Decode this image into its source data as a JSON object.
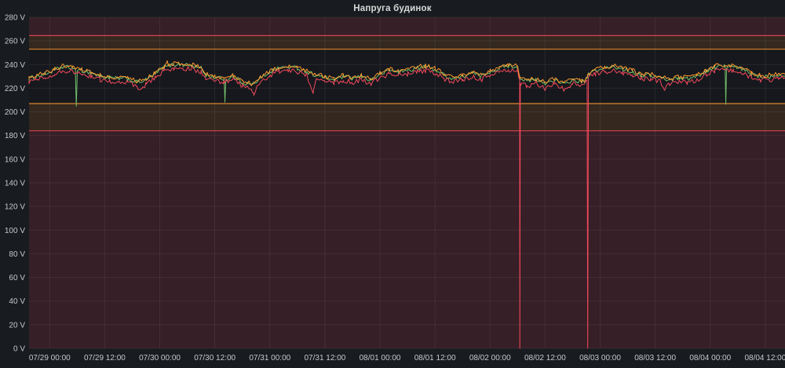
{
  "panel": {
    "title": "Напруга будинок"
  },
  "colors": {
    "panel_bg": "#181b1f",
    "plot_bg": "#16181d",
    "grid": "rgba(255,255,255,0.07)",
    "axis_text": "#c7c8cd",
    "title_text": "#d8d9da",
    "green": "#73bf69",
    "orange": "#ff9830",
    "red": "#f2495c"
  },
  "chart_data": {
    "type": "line",
    "title": "Напруга будинок",
    "unit": "V",
    "legend": "none",
    "grid": true,
    "y_range": [
      0,
      280
    ],
    "y_tick_step": 20,
    "y_ticks": [
      "0 V",
      "20 V",
      "40 V",
      "60 V",
      "80 V",
      "100 V",
      "120 V",
      "140 V",
      "160 V",
      "180 V",
      "200 V",
      "220 V",
      "240 V",
      "260 V",
      "280 V"
    ],
    "x_range_hours": [
      -4.5,
      160.3
    ],
    "x_ticks": [
      {
        "h": 0,
        "label": "07/29 00:00"
      },
      {
        "h": 12,
        "label": "07/29 12:00"
      },
      {
        "h": 24,
        "label": "07/30 00:00"
      },
      {
        "h": 36,
        "label": "07/30 12:00"
      },
      {
        "h": 48,
        "label": "07/31 00:00"
      },
      {
        "h": 60,
        "label": "07/31 12:00"
      },
      {
        "h": 72,
        "label": "08/01 00:00"
      },
      {
        "h": 84,
        "label": "08/01 12:00"
      },
      {
        "h": 96,
        "label": "08/02 00:00"
      },
      {
        "h": 108,
        "label": "08/02 12:00"
      },
      {
        "h": 120,
        "label": "08/03 00:00"
      },
      {
        "h": 132,
        "label": "08/03 12:00"
      },
      {
        "h": 144,
        "label": "08/04 00:00"
      },
      {
        "h": 156,
        "label": "08/04 12:00"
      }
    ],
    "thresholds": {
      "bands": [
        {
          "from": 264.5,
          "to": 280,
          "fill": "rgba(242,73,92,0.15)"
        },
        {
          "from": 253,
          "to": 264.5,
          "fill": "rgba(255,152,48,0.13)"
        },
        {
          "from": 184,
          "to": 207,
          "fill": "rgba(255,152,48,0.13)"
        },
        {
          "from": 0,
          "to": 184,
          "fill": "rgba(242,73,92,0.15)"
        }
      ],
      "lines": [
        {
          "value": 264.5,
          "color": "rgba(242,73,92,0.85)"
        },
        {
          "value": 253,
          "color": "rgba(255,152,48,0.85)"
        },
        {
          "value": 207,
          "color": "rgba(255,152,48,0.85)"
        },
        {
          "value": 184,
          "color": "rgba(242,73,92,0.85)"
        }
      ]
    },
    "annotations": {
      "red_phase_drops_to_zero": [
        "08/02 ~06:30",
        "08/02 ~21:20"
      ],
      "green_phase_dips": [
        "07/29 ~05:50 to ~205 V",
        "07/30 ~14:10 to ~210 V",
        "08/04 ~03:25 to ~206 V"
      ],
      "sag_window_low_voltage": "08/02 06:30 - 08/02 21:20 (~219-228 V)"
    },
    "series": [
      {
        "name": "green",
        "color": "#73bf69",
        "noise": 1.8,
        "points": [
          [
            -4.5,
            228
          ],
          [
            -3,
            230
          ],
          [
            -1,
            232
          ],
          [
            1,
            235
          ],
          [
            3,
            238
          ],
          [
            5,
            237
          ],
          [
            5.6,
            235
          ],
          [
            5.8,
            205
          ],
          [
            6,
            234
          ],
          [
            7,
            235
          ],
          [
            9,
            233
          ],
          [
            11,
            230
          ],
          [
            13,
            229
          ],
          [
            15,
            228
          ],
          [
            17,
            228
          ],
          [
            19,
            225
          ],
          [
            21,
            227
          ],
          [
            23,
            232
          ],
          [
            25,
            238
          ],
          [
            27,
            240
          ],
          [
            29,
            240
          ],
          [
            31,
            239
          ],
          [
            33,
            237
          ],
          [
            34,
            231
          ],
          [
            36,
            229
          ],
          [
            38,
            228
          ],
          [
            38.05,
            227
          ],
          [
            38.2,
            210
          ],
          [
            38.4,
            227
          ],
          [
            40,
            230
          ],
          [
            42,
            225
          ],
          [
            44,
            223
          ],
          [
            46,
            228
          ],
          [
            48,
            234
          ],
          [
            50,
            237
          ],
          [
            52,
            238
          ],
          [
            54,
            237
          ],
          [
            56,
            234
          ],
          [
            58,
            231
          ],
          [
            60,
            229
          ],
          [
            62,
            227
          ],
          [
            64,
            230
          ],
          [
            66,
            228
          ],
          [
            68,
            230
          ],
          [
            70,
            227
          ],
          [
            72,
            232
          ],
          [
            74,
            235
          ],
          [
            76,
            234
          ],
          [
            78,
            235
          ],
          [
            80,
            237
          ],
          [
            82,
            238
          ],
          [
            84,
            236
          ],
          [
            86,
            231
          ],
          [
            88,
            228
          ],
          [
            90,
            230
          ],
          [
            92,
            233
          ],
          [
            94,
            230
          ],
          [
            96,
            234
          ],
          [
            98,
            237
          ],
          [
            100,
            239
          ],
          [
            102,
            238
          ],
          [
            102.5,
            229
          ],
          [
            104,
            226
          ],
          [
            106,
            227
          ],
          [
            108,
            224
          ],
          [
            110,
            227
          ],
          [
            112,
            223
          ],
          [
            114,
            227
          ],
          [
            116,
            225
          ],
          [
            117.2,
            228
          ],
          [
            117.5,
            232
          ],
          [
            119,
            235
          ],
          [
            121,
            237
          ],
          [
            123,
            238
          ],
          [
            125,
            236
          ],
          [
            127,
            234
          ],
          [
            129,
            231
          ],
          [
            131,
            231
          ],
          [
            133,
            229
          ],
          [
            135,
            227
          ],
          [
            137,
            229
          ],
          [
            139,
            228
          ],
          [
            141,
            230
          ],
          [
            143,
            234
          ],
          [
            145,
            238
          ],
          [
            147,
            239
          ],
          [
            147.25,
            238
          ],
          [
            147.4,
            206
          ],
          [
            147.55,
            238
          ],
          [
            149,
            238
          ],
          [
            151,
            236
          ],
          [
            153,
            232
          ],
          [
            155,
            230
          ],
          [
            157,
            230
          ],
          [
            159,
            232
          ],
          [
            160.3,
            231
          ]
        ]
      },
      {
        "name": "red",
        "color": "#f2495c",
        "noise": 2.1,
        "points": [
          [
            -4.5,
            225
          ],
          [
            -3,
            227
          ],
          [
            -1,
            229
          ],
          [
            1,
            232
          ],
          [
            3,
            235
          ],
          [
            5,
            234
          ],
          [
            7,
            232
          ],
          [
            9,
            230
          ],
          [
            11,
            227
          ],
          [
            13,
            226
          ],
          [
            15,
            225
          ],
          [
            17,
            225
          ],
          [
            19,
            221
          ],
          [
            20.5,
            219
          ],
          [
            21,
            224
          ],
          [
            23,
            229
          ],
          [
            25,
            235
          ],
          [
            27,
            237
          ],
          [
            29,
            237
          ],
          [
            31,
            236
          ],
          [
            33,
            234
          ],
          [
            34,
            228
          ],
          [
            36,
            226
          ],
          [
            38,
            225
          ],
          [
            40,
            227
          ],
          [
            42,
            222
          ],
          [
            44,
            219
          ],
          [
            44.5,
            216
          ],
          [
            46,
            225
          ],
          [
            48,
            231
          ],
          [
            50,
            234
          ],
          [
            52,
            235
          ],
          [
            54,
            234
          ],
          [
            56,
            231
          ],
          [
            57.5,
            217
          ],
          [
            58,
            228
          ],
          [
            60,
            226
          ],
          [
            62,
            224
          ],
          [
            64,
            227
          ],
          [
            66,
            225
          ],
          [
            68,
            227
          ],
          [
            70,
            224
          ],
          [
            72,
            229
          ],
          [
            74,
            232
          ],
          [
            76,
            231
          ],
          [
            78,
            232
          ],
          [
            80,
            234
          ],
          [
            82,
            235
          ],
          [
            84,
            233
          ],
          [
            86,
            228
          ],
          [
            88,
            225
          ],
          [
            90,
            227
          ],
          [
            92,
            230
          ],
          [
            94,
            227
          ],
          [
            96,
            231
          ],
          [
            98,
            234
          ],
          [
            100,
            236
          ],
          [
            102,
            235
          ],
          [
            102.45,
            226
          ],
          [
            102.5,
            0
          ],
          [
            102.6,
            223
          ],
          [
            104,
            222
          ],
          [
            106,
            224
          ],
          [
            108,
            220
          ],
          [
            110,
            224
          ],
          [
            112,
            219
          ],
          [
            114,
            224
          ],
          [
            116,
            222
          ],
          [
            117.15,
            226
          ],
          [
            117.3,
            0
          ],
          [
            117.45,
            230
          ],
          [
            119,
            232
          ],
          [
            121,
            234
          ],
          [
            123,
            235
          ],
          [
            125,
            233
          ],
          [
            127,
            231
          ],
          [
            129,
            228
          ],
          [
            131,
            228
          ],
          [
            133,
            226
          ],
          [
            134,
            220
          ],
          [
            135,
            224
          ],
          [
            137,
            226
          ],
          [
            139,
            225
          ],
          [
            141,
            227
          ],
          [
            143,
            231
          ],
          [
            145,
            235
          ],
          [
            147,
            236
          ],
          [
            149,
            235
          ],
          [
            151,
            233
          ],
          [
            153,
            229
          ],
          [
            155,
            227
          ],
          [
            157,
            227
          ],
          [
            159,
            229
          ],
          [
            160.3,
            228
          ]
        ]
      },
      {
        "name": "orange",
        "color": "#ff9830",
        "noise": 1.8,
        "points": [
          [
            -4.5,
            229
          ],
          [
            -3,
            231
          ],
          [
            -1,
            233
          ],
          [
            1,
            236
          ],
          [
            3,
            239
          ],
          [
            5,
            238
          ],
          [
            7,
            236
          ],
          [
            9,
            234
          ],
          [
            11,
            231
          ],
          [
            13,
            230
          ],
          [
            15,
            229
          ],
          [
            17,
            229
          ],
          [
            19,
            226
          ],
          [
            21,
            228
          ],
          [
            23,
            233
          ],
          [
            25,
            239
          ],
          [
            25.5,
            243
          ],
          [
            26,
            240
          ],
          [
            27,
            241
          ],
          [
            29,
            241
          ],
          [
            31,
            240
          ],
          [
            33,
            238
          ],
          [
            34,
            232
          ],
          [
            36,
            230
          ],
          [
            38,
            229
          ],
          [
            40,
            231
          ],
          [
            42,
            226
          ],
          [
            44,
            224
          ],
          [
            46,
            229
          ],
          [
            48,
            235
          ],
          [
            50,
            238
          ],
          [
            52,
            239
          ],
          [
            54,
            238
          ],
          [
            56,
            235
          ],
          [
            58,
            232
          ],
          [
            60,
            230
          ],
          [
            62,
            228
          ],
          [
            64,
            231
          ],
          [
            66,
            229
          ],
          [
            68,
            231
          ],
          [
            70,
            228
          ],
          [
            72,
            233
          ],
          [
            74,
            236
          ],
          [
            76,
            235
          ],
          [
            78,
            236
          ],
          [
            80,
            238
          ],
          [
            82,
            239
          ],
          [
            84,
            237
          ],
          [
            86,
            232
          ],
          [
            88,
            229
          ],
          [
            90,
            231
          ],
          [
            92,
            234
          ],
          [
            94,
            231
          ],
          [
            96,
            235
          ],
          [
            98,
            238
          ],
          [
            100,
            240
          ],
          [
            100.3,
            241
          ],
          [
            102,
            239
          ],
          [
            102.5,
            230
          ],
          [
            104,
            227
          ],
          [
            106,
            228
          ],
          [
            108,
            225
          ],
          [
            110,
            228
          ],
          [
            112,
            224
          ],
          [
            114,
            228
          ],
          [
            116,
            226
          ],
          [
            117.2,
            229
          ],
          [
            117.5,
            233
          ],
          [
            119,
            236
          ],
          [
            121,
            238
          ],
          [
            123,
            239
          ],
          [
            125,
            237
          ],
          [
            127,
            235
          ],
          [
            129,
            232
          ],
          [
            131,
            232
          ],
          [
            133,
            230
          ],
          [
            135,
            228
          ],
          [
            137,
            230
          ],
          [
            139,
            229
          ],
          [
            141,
            231
          ],
          [
            143,
            235
          ],
          [
            145,
            239
          ],
          [
            147,
            240
          ],
          [
            149,
            239
          ],
          [
            151,
            237
          ],
          [
            153,
            233
          ],
          [
            155,
            231
          ],
          [
            157,
            231
          ],
          [
            159,
            233
          ],
          [
            160.3,
            232
          ]
        ]
      }
    ]
  }
}
